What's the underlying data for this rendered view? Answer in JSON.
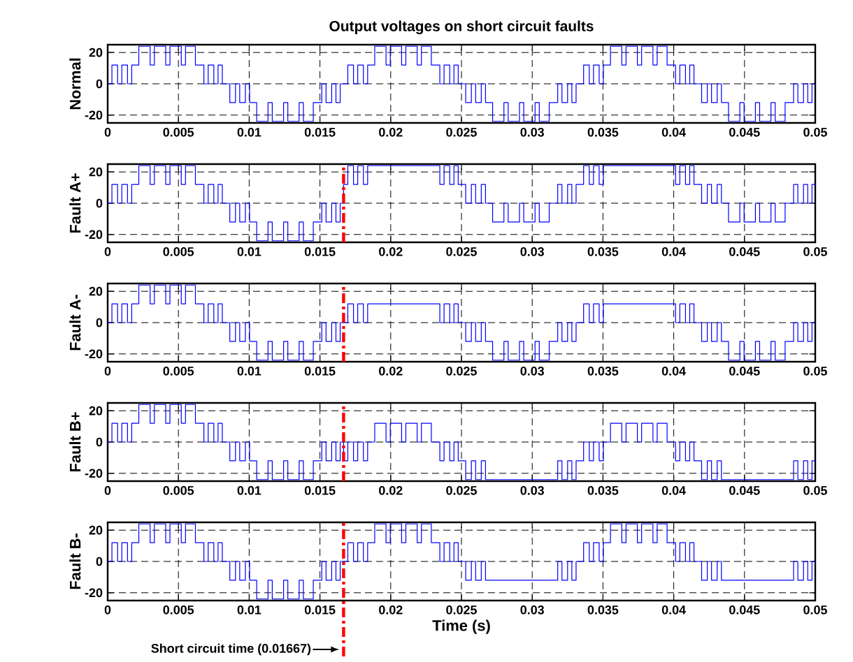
{
  "chart_data": [
    {
      "type": "step",
      "title": "Output voltages on short circuit faults",
      "ylabel": "Normal",
      "color": "#0000ff",
      "xlim": [
        0,
        0.05
      ],
      "xticks": [
        0,
        0.005,
        0.01,
        0.015,
        0.02,
        0.025,
        0.03,
        0.035,
        0.04,
        0.045,
        0.05
      ],
      "ylim": [
        -25,
        25
      ],
      "yticks": [
        -20,
        0,
        20
      ],
      "grid": true,
      "x": [
        0,
        0.0003,
        0.0007,
        0.001,
        0.0014,
        0.0017,
        0.0022,
        0.003,
        0.0033,
        0.0041,
        0.0044,
        0.0052,
        0.0055,
        0.0062,
        0.0068,
        0.0071,
        0.0075,
        0.0078,
        0.0081,
        0.00833,
        0.00863,
        0.00903,
        0.00933,
        0.00973,
        0.01003,
        0.01053,
        0.01133,
        0.01163,
        0.01243,
        0.01273,
        0.01353,
        0.01383,
        0.01453,
        0.01513,
        0.01543,
        0.01583,
        0.01613,
        0.01643,
        0.01667,
        0.01697,
        0.01737,
        0.01767,
        0.01807,
        0.01837,
        0.01887,
        0.01967,
        0.01997,
        0.02077,
        0.02107,
        0.02187,
        0.02217,
        0.02287,
        0.02347,
        0.02377,
        0.02417,
        0.02447,
        0.02477,
        0.025,
        0.0253,
        0.0257,
        0.026,
        0.0264,
        0.0267,
        0.0272,
        0.028,
        0.0283,
        0.0291,
        0.0294,
        0.0302,
        0.0305,
        0.0312,
        0.0318,
        0.0321,
        0.0325,
        0.0328,
        0.0331,
        0.03333,
        0.03363,
        0.03403,
        0.03433,
        0.03473,
        0.03503,
        0.03553,
        0.03633,
        0.03663,
        0.03743,
        0.03773,
        0.03853,
        0.03883,
        0.03953,
        0.04013,
        0.04043,
        0.04083,
        0.04113,
        0.04143,
        0.04167,
        0.04197,
        0.04237,
        0.04267,
        0.04307,
        0.04337,
        0.04387,
        0.04467,
        0.04497,
        0.04577,
        0.04607,
        0.04687,
        0.04717,
        0.04787,
        0.04847,
        0.04877,
        0.04917,
        0.04947,
        0.04977,
        0.05
      ],
      "values": [
        0,
        12,
        0,
        12,
        0,
        12,
        24,
        12,
        24,
        12,
        24,
        12,
        24,
        12,
        0,
        12,
        0,
        12,
        0,
        0,
        -12,
        0,
        -12,
        0,
        -12,
        -24,
        -12,
        -24,
        -12,
        -24,
        -12,
        -24,
        -12,
        0,
        -12,
        0,
        -12,
        0,
        0,
        12,
        0,
        12,
        0,
        12,
        24,
        12,
        24,
        12,
        24,
        12,
        24,
        12,
        0,
        12,
        0,
        12,
        0,
        0,
        -12,
        0,
        -12,
        0,
        -12,
        -24,
        -12,
        -24,
        -12,
        -24,
        -12,
        -24,
        -12,
        0,
        -12,
        0,
        -12,
        0,
        0,
        12,
        0,
        12,
        0,
        12,
        24,
        12,
        24,
        12,
        24,
        12,
        24,
        12,
        0,
        12,
        0,
        12,
        0,
        0,
        -12,
        0,
        -12,
        0,
        -12,
        -24,
        -12,
        -24,
        -12,
        -24,
        -12,
        -24,
        -12,
        0,
        -12,
        0,
        -12,
        0,
        0
      ]
    },
    {
      "type": "step",
      "ylabel": "Fault A+",
      "color": "#0000ff",
      "xlim": [
        0,
        0.05
      ],
      "xticks": [
        0,
        0.005,
        0.01,
        0.015,
        0.02,
        0.025,
        0.03,
        0.035,
        0.04,
        0.045,
        0.05
      ],
      "ylim": [
        -25,
        25
      ],
      "yticks": [
        -20,
        0,
        20
      ],
      "grid": true,
      "ref_lines": [
        {
          "axis": "x",
          "value": 0.01667,
          "color": "#ff0000",
          "line_style": "dashdot"
        }
      ],
      "x": [
        0,
        0.0003,
        0.0007,
        0.001,
        0.0014,
        0.0017,
        0.0022,
        0.003,
        0.0033,
        0.0041,
        0.0044,
        0.0052,
        0.0055,
        0.0062,
        0.0068,
        0.0071,
        0.0075,
        0.0078,
        0.0081,
        0.00833,
        0.00863,
        0.00903,
        0.00933,
        0.00973,
        0.01003,
        0.01053,
        0.01133,
        0.01163,
        0.01243,
        0.01273,
        0.01353,
        0.01383,
        0.01453,
        0.01513,
        0.01543,
        0.01583,
        0.01613,
        0.01643,
        0.01667,
        0.01697,
        0.01737,
        0.01767,
        0.01807,
        0.01837,
        0.01887,
        0.01967,
        0.01997,
        0.02077,
        0.02107,
        0.02187,
        0.02217,
        0.02287,
        0.02347,
        0.02377,
        0.02417,
        0.02447,
        0.02477,
        0.025,
        0.0253,
        0.0257,
        0.026,
        0.0264,
        0.0267,
        0.0272,
        0.028,
        0.0283,
        0.0291,
        0.0294,
        0.0302,
        0.0305,
        0.0312,
        0.0318,
        0.0321,
        0.0325,
        0.0328,
        0.0331,
        0.03333,
        0.03363,
        0.03403,
        0.03433,
        0.03473,
        0.03503,
        0.03553,
        0.03633,
        0.03663,
        0.03743,
        0.03773,
        0.03853,
        0.03883,
        0.03953,
        0.04013,
        0.04043,
        0.04083,
        0.04113,
        0.04143,
        0.04167,
        0.04197,
        0.04237,
        0.04267,
        0.04307,
        0.04337,
        0.04387,
        0.04467,
        0.04497,
        0.04577,
        0.04607,
        0.04687,
        0.04717,
        0.04787,
        0.04847,
        0.04877,
        0.04917,
        0.04947,
        0.04977,
        0.05
      ],
      "values": [
        0,
        12,
        0,
        12,
        0,
        12,
        24,
        12,
        24,
        12,
        24,
        12,
        24,
        12,
        0,
        12,
        0,
        12,
        0,
        0,
        -12,
        0,
        -12,
        0,
        -12,
        -24,
        -12,
        -24,
        -12,
        -24,
        -12,
        -24,
        -12,
        0,
        -12,
        0,
        -12,
        0,
        12,
        24,
        12,
        24,
        12,
        24,
        24,
        24,
        24,
        24,
        24,
        24,
        24,
        24,
        12,
        24,
        12,
        24,
        12,
        12,
        0,
        12,
        0,
        12,
        0,
        -12,
        0,
        -12,
        0,
        -12,
        0,
        -12,
        0,
        12,
        0,
        12,
        0,
        12,
        12,
        24,
        12,
        24,
        12,
        24,
        24,
        24,
        24,
        24,
        24,
        24,
        24,
        24,
        12,
        24,
        12,
        24,
        12,
        12,
        0,
        12,
        0,
        12,
        0,
        -12,
        0,
        -12,
        0,
        -12,
        0,
        -12,
        0,
        12,
        0,
        12,
        0,
        12,
        12
      ]
    },
    {
      "type": "step",
      "ylabel": "Fault A-",
      "color": "#0000ff",
      "xlim": [
        0,
        0.05
      ],
      "xticks": [
        0,
        0.005,
        0.01,
        0.015,
        0.02,
        0.025,
        0.03,
        0.035,
        0.04,
        0.045,
        0.05
      ],
      "ylim": [
        -25,
        25
      ],
      "yticks": [
        -20,
        0,
        20
      ],
      "grid": true,
      "ref_lines": [
        {
          "axis": "x",
          "value": 0.01667,
          "color": "#ff0000",
          "line_style": "dashdot"
        }
      ],
      "x": [
        0,
        0.0003,
        0.0007,
        0.001,
        0.0014,
        0.0017,
        0.0022,
        0.003,
        0.0033,
        0.0041,
        0.0044,
        0.0052,
        0.0055,
        0.0062,
        0.0068,
        0.0071,
        0.0075,
        0.0078,
        0.0081,
        0.00833,
        0.00863,
        0.00903,
        0.00933,
        0.00973,
        0.01003,
        0.01053,
        0.01133,
        0.01163,
        0.01243,
        0.01273,
        0.01353,
        0.01383,
        0.01453,
        0.01513,
        0.01543,
        0.01583,
        0.01613,
        0.01643,
        0.01667,
        0.01697,
        0.01737,
        0.01767,
        0.01807,
        0.01837,
        0.01887,
        0.01967,
        0.01997,
        0.02077,
        0.02107,
        0.02187,
        0.02217,
        0.02287,
        0.02347,
        0.02377,
        0.02417,
        0.02447,
        0.02477,
        0.025,
        0.0253,
        0.0257,
        0.026,
        0.0264,
        0.0267,
        0.0272,
        0.028,
        0.0283,
        0.0291,
        0.0294,
        0.0302,
        0.0305,
        0.0312,
        0.0318,
        0.0321,
        0.0325,
        0.0328,
        0.0331,
        0.03333,
        0.03363,
        0.03403,
        0.03433,
        0.03473,
        0.03503,
        0.03553,
        0.03633,
        0.03663,
        0.03743,
        0.03773,
        0.03853,
        0.03883,
        0.03953,
        0.04013,
        0.04043,
        0.04083,
        0.04113,
        0.04143,
        0.04167,
        0.04197,
        0.04237,
        0.04267,
        0.04307,
        0.04337,
        0.04387,
        0.04467,
        0.04497,
        0.04577,
        0.04607,
        0.04687,
        0.04717,
        0.04787,
        0.04847,
        0.04877,
        0.04917,
        0.04947,
        0.04977,
        0.05
      ],
      "values": [
        0,
        12,
        0,
        12,
        0,
        12,
        24,
        12,
        24,
        12,
        24,
        12,
        24,
        12,
        0,
        12,
        0,
        12,
        0,
        0,
        -12,
        0,
        -12,
        0,
        -12,
        -24,
        -12,
        -24,
        -12,
        -24,
        -12,
        -24,
        -12,
        0,
        -12,
        0,
        -12,
        0,
        0,
        12,
        0,
        12,
        0,
        12,
        12,
        12,
        12,
        12,
        12,
        12,
        12,
        12,
        0,
        12,
        0,
        12,
        0,
        0,
        -12,
        0,
        -12,
        0,
        -12,
        -24,
        -12,
        -24,
        -12,
        -24,
        -12,
        -24,
        -12,
        0,
        -12,
        0,
        -12,
        0,
        0,
        12,
        0,
        12,
        0,
        12,
        12,
        12,
        12,
        12,
        12,
        12,
        12,
        12,
        0,
        12,
        0,
        12,
        0,
        0,
        -12,
        0,
        -12,
        0,
        -12,
        -24,
        -12,
        -24,
        -12,
        -24,
        -12,
        -24,
        -12,
        0,
        -12,
        0,
        -12,
        0,
        0
      ]
    },
    {
      "type": "step",
      "ylabel": "Fault B+",
      "color": "#0000ff",
      "xlim": [
        0,
        0.05
      ],
      "xticks": [
        0,
        0.005,
        0.01,
        0.015,
        0.02,
        0.025,
        0.03,
        0.035,
        0.04,
        0.045,
        0.05
      ],
      "ylim": [
        -25,
        25
      ],
      "yticks": [
        -20,
        0,
        20
      ],
      "grid": true,
      "ref_lines": [
        {
          "axis": "x",
          "value": 0.01667,
          "color": "#ff0000",
          "line_style": "dashdot"
        }
      ],
      "x": [
        0,
        0.0003,
        0.0007,
        0.001,
        0.0014,
        0.0017,
        0.0022,
        0.003,
        0.0033,
        0.0041,
        0.0044,
        0.0052,
        0.0055,
        0.0062,
        0.0068,
        0.0071,
        0.0075,
        0.0078,
        0.0081,
        0.00833,
        0.00863,
        0.00903,
        0.00933,
        0.00973,
        0.01003,
        0.01053,
        0.01133,
        0.01163,
        0.01243,
        0.01273,
        0.01353,
        0.01383,
        0.01453,
        0.01513,
        0.01543,
        0.01583,
        0.01613,
        0.01643,
        0.01667,
        0.01697,
        0.01737,
        0.01767,
        0.01807,
        0.01837,
        0.01887,
        0.01967,
        0.01997,
        0.02077,
        0.02107,
        0.02187,
        0.02217,
        0.02287,
        0.02347,
        0.02377,
        0.02417,
        0.02447,
        0.02477,
        0.025,
        0.0253,
        0.0257,
        0.026,
        0.0264,
        0.0267,
        0.0272,
        0.028,
        0.0283,
        0.0291,
        0.0294,
        0.0302,
        0.0305,
        0.0312,
        0.0318,
        0.0321,
        0.0325,
        0.0328,
        0.0331,
        0.03333,
        0.03363,
        0.03403,
        0.03433,
        0.03473,
        0.03503,
        0.03553,
        0.03633,
        0.03663,
        0.03743,
        0.03773,
        0.03853,
        0.03883,
        0.03953,
        0.04013,
        0.04043,
        0.04083,
        0.04113,
        0.04143,
        0.04167,
        0.04197,
        0.04237,
        0.04267,
        0.04307,
        0.04337,
        0.04387,
        0.04467,
        0.04497,
        0.04577,
        0.04607,
        0.04687,
        0.04717,
        0.04787,
        0.04847,
        0.04877,
        0.04917,
        0.04947,
        0.04977,
        0.05
      ],
      "values": [
        0,
        12,
        0,
        12,
        0,
        12,
        24,
        12,
        24,
        12,
        24,
        12,
        24,
        12,
        0,
        12,
        0,
        12,
        0,
        0,
        -12,
        0,
        -12,
        0,
        -12,
        -24,
        -12,
        -24,
        -12,
        -24,
        -12,
        -24,
        -12,
        0,
        -12,
        0,
        -12,
        0,
        -12,
        0,
        -12,
        0,
        -12,
        0,
        12,
        0,
        12,
        0,
        12,
        0,
        12,
        0,
        -12,
        0,
        -12,
        0,
        -12,
        -12,
        -24,
        -12,
        -24,
        -12,
        -24,
        -24,
        -24,
        -24,
        -24,
        -24,
        -24,
        -24,
        -24,
        -12,
        -24,
        -12,
        -24,
        -12,
        -12,
        0,
        -12,
        0,
        -12,
        0,
        12,
        0,
        12,
        0,
        12,
        0,
        12,
        0,
        -12,
        0,
        -12,
        0,
        -12,
        -12,
        -24,
        -12,
        -24,
        -12,
        -24,
        -24,
        -24,
        -24,
        -24,
        -24,
        -24,
        -24,
        -24,
        -12,
        -24,
        -12,
        -24,
        -12,
        -12
      ]
    },
    {
      "type": "step",
      "ylabel": "Fault B-",
      "xlabel": "Time (s)",
      "color": "#0000ff",
      "xlim": [
        0,
        0.05
      ],
      "xticks": [
        0,
        0.005,
        0.01,
        0.015,
        0.02,
        0.025,
        0.03,
        0.035,
        0.04,
        0.045,
        0.05
      ],
      "ylim": [
        -25,
        25
      ],
      "yticks": [
        -20,
        0,
        20
      ],
      "grid": true,
      "ref_lines": [
        {
          "axis": "x",
          "value": 0.01667,
          "color": "#ff0000",
          "line_style": "dashdot",
          "label": "Short circuit time (0.01667)"
        }
      ],
      "x": [
        0,
        0.0003,
        0.0007,
        0.001,
        0.0014,
        0.0017,
        0.0022,
        0.003,
        0.0033,
        0.0041,
        0.0044,
        0.0052,
        0.0055,
        0.0062,
        0.0068,
        0.0071,
        0.0075,
        0.0078,
        0.0081,
        0.00833,
        0.00863,
        0.00903,
        0.00933,
        0.00973,
        0.01003,
        0.01053,
        0.01133,
        0.01163,
        0.01243,
        0.01273,
        0.01353,
        0.01383,
        0.01453,
        0.01513,
        0.01543,
        0.01583,
        0.01613,
        0.01643,
        0.01667,
        0.01697,
        0.01737,
        0.01767,
        0.01807,
        0.01837,
        0.01887,
        0.01967,
        0.01997,
        0.02077,
        0.02107,
        0.02187,
        0.02217,
        0.02287,
        0.02347,
        0.02377,
        0.02417,
        0.02447,
        0.02477,
        0.025,
        0.0253,
        0.0257,
        0.026,
        0.0264,
        0.0267,
        0.0272,
        0.028,
        0.0283,
        0.0291,
        0.0294,
        0.0302,
        0.0305,
        0.0312,
        0.0318,
        0.0321,
        0.0325,
        0.0328,
        0.0331,
        0.03333,
        0.03363,
        0.03403,
        0.03433,
        0.03473,
        0.03503,
        0.03553,
        0.03633,
        0.03663,
        0.03743,
        0.03773,
        0.03853,
        0.03883,
        0.03953,
        0.04013,
        0.04043,
        0.04083,
        0.04113,
        0.04143,
        0.04167,
        0.04197,
        0.04237,
        0.04267,
        0.04307,
        0.04337,
        0.04387,
        0.04467,
        0.04497,
        0.04577,
        0.04607,
        0.04687,
        0.04717,
        0.04787,
        0.04847,
        0.04877,
        0.04917,
        0.04947,
        0.04977,
        0.05
      ],
      "values": [
        0,
        12,
        0,
        12,
        0,
        12,
        24,
        12,
        24,
        12,
        24,
        12,
        24,
        12,
        0,
        12,
        0,
        12,
        0,
        0,
        -12,
        0,
        -12,
        0,
        -12,
        -24,
        -12,
        -24,
        -12,
        -24,
        -12,
        -24,
        -12,
        0,
        -12,
        0,
        -12,
        0,
        0,
        12,
        0,
        12,
        0,
        12,
        24,
        12,
        24,
        12,
        24,
        12,
        24,
        12,
        0,
        12,
        0,
        12,
        0,
        0,
        -12,
        0,
        -12,
        0,
        -12,
        -12,
        -12,
        -12,
        -12,
        -12,
        -12,
        -12,
        -12,
        0,
        -12,
        0,
        -12,
        0,
        0,
        12,
        0,
        12,
        0,
        12,
        24,
        12,
        24,
        12,
        24,
        12,
        24,
        12,
        0,
        12,
        0,
        12,
        0,
        0,
        -12,
        0,
        -12,
        0,
        -12,
        -12,
        -12,
        -12,
        -12,
        -12,
        -12,
        -12,
        -12,
        0,
        -12,
        0,
        -12,
        0,
        0
      ]
    }
  ]
}
